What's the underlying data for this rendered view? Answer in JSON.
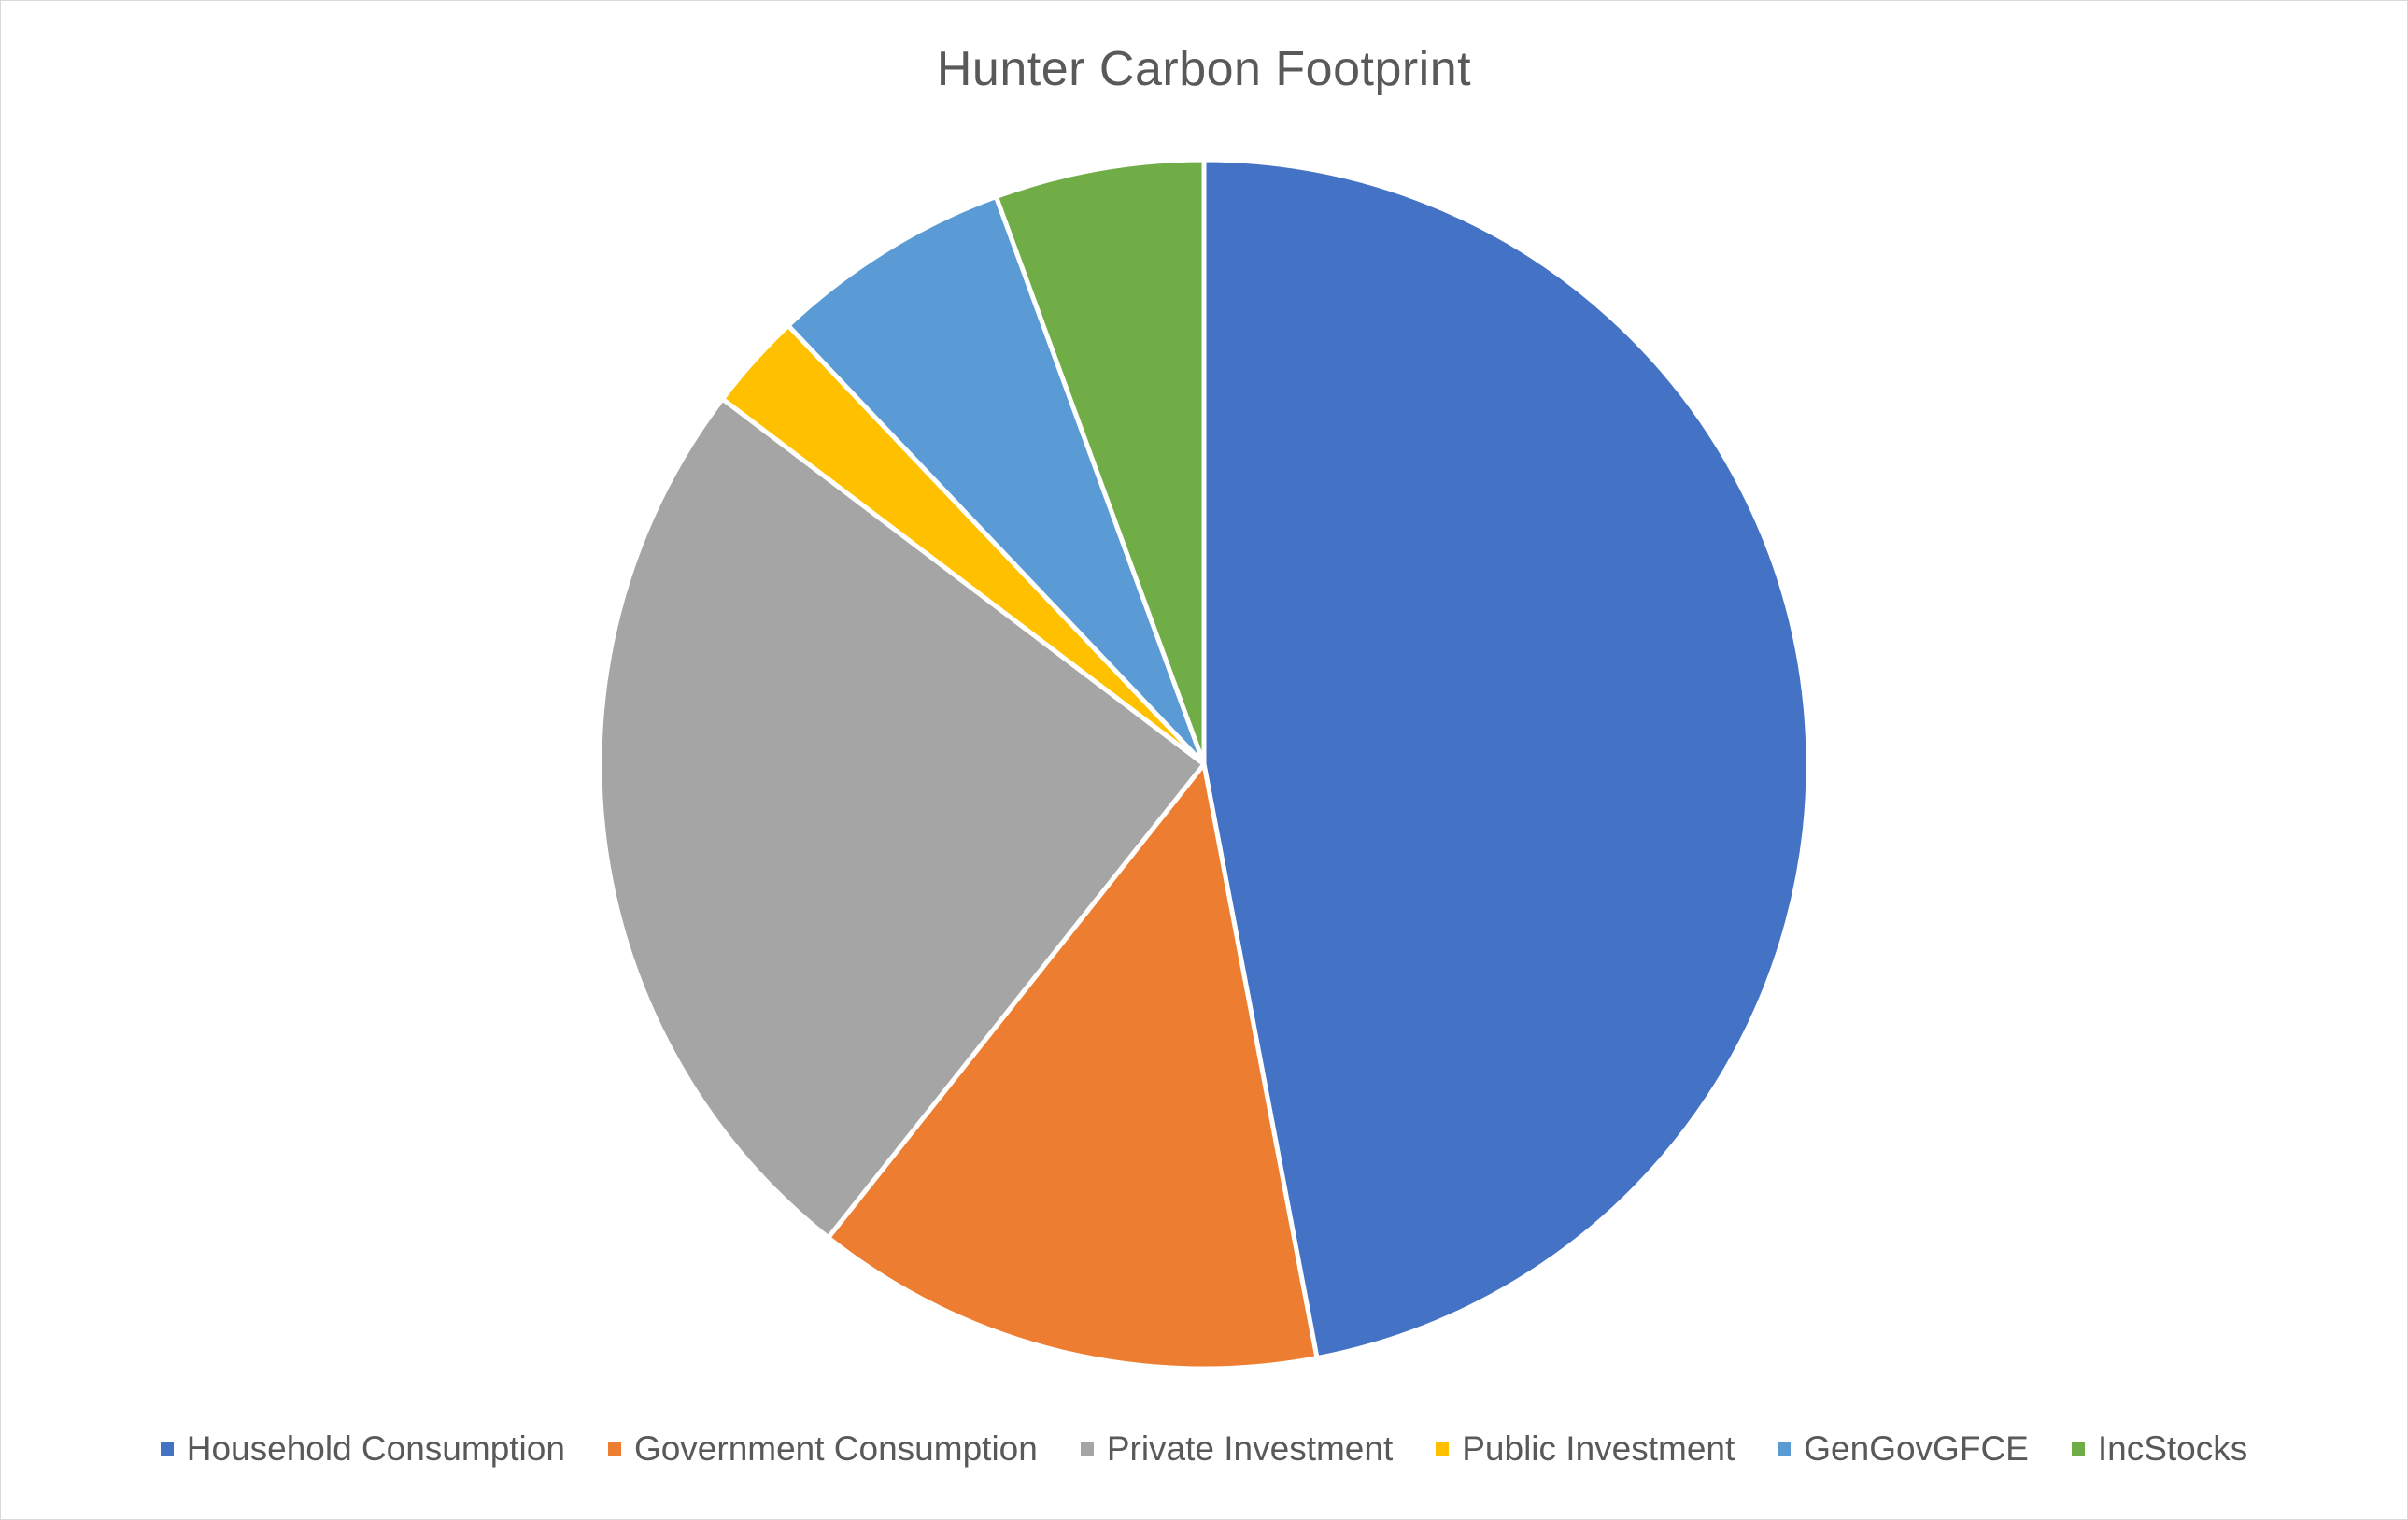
{
  "chart_data": {
    "type": "pie",
    "title": "Hunter Carbon Footprint",
    "categories": [
      "Household Consumption",
      "Government Consumption",
      "Private Investment",
      "Public Investment",
      "GenGovGFCE",
      "IncStocks"
    ],
    "values": [
      47.1,
      13.7,
      24.7,
      2.6,
      6.5,
      5.6
    ],
    "colors": [
      "#4472C4",
      "#ED7D31",
      "#A5A5A5",
      "#FFC000",
      "#5B9BD5",
      "#70AD47"
    ],
    "start_angle": "12 o'clock",
    "direction": "clockwise",
    "legend_position": "bottom"
  }
}
